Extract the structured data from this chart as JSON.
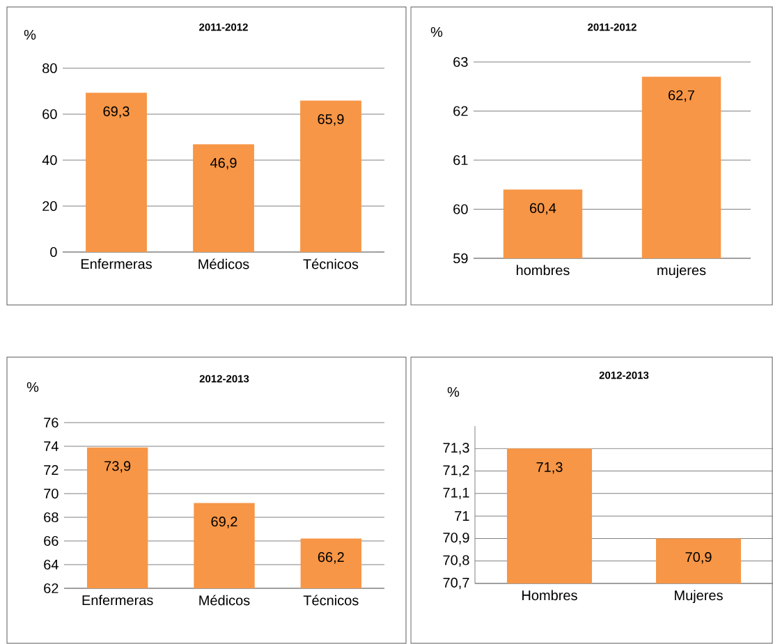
{
  "chart_data": [
    {
      "type": "bar",
      "title": "2011-2012",
      "ylabel": "%",
      "categories": [
        "Enfermeras",
        "Médicos",
        "Técnicos"
      ],
      "values": [
        69.3,
        46.9,
        65.9
      ],
      "value_labels": [
        "69,3",
        "46,9",
        "65,9"
      ],
      "color": "#f79646",
      "ylim": [
        0,
        80
      ],
      "yticks": [
        0,
        20,
        40,
        60,
        80
      ],
      "grid": "y"
    },
    {
      "type": "bar",
      "title": "2011-2012",
      "ylabel": "%",
      "categories": [
        "hombres",
        "mujeres"
      ],
      "values": [
        60.4,
        62.7
      ],
      "value_labels": [
        "60,4",
        "62,7"
      ],
      "color": "#f79646",
      "ylim": [
        59,
        63
      ],
      "yticks": [
        59,
        60,
        61,
        62,
        63
      ],
      "grid": "y"
    },
    {
      "type": "bar",
      "title": "2012-2013",
      "ylabel": "%",
      "categories": [
        "Enfermeras",
        "Médicos",
        "Técnicos"
      ],
      "values": [
        73.9,
        69.2,
        66.2
      ],
      "value_labels": [
        "73,9",
        "69,2",
        "66,2"
      ],
      "color": "#f79646",
      "ylim": [
        62,
        76
      ],
      "yticks": [
        62,
        64,
        66,
        68,
        70,
        72,
        74,
        76
      ],
      "grid": "y"
    },
    {
      "type": "bar",
      "title": "2012-2013",
      "ylabel": "%",
      "categories": [
        "Hombres",
        "Mujeres"
      ],
      "values": [
        71.3,
        70.9
      ],
      "value_labels": [
        "71,3",
        "70,9"
      ],
      "color": "#f79646",
      "ylim": [
        70.7,
        71.4
      ],
      "yticks": [
        {
          "value": 70.7,
          "label": "70,7"
        },
        {
          "value": 70.8,
          "label": "70,8"
        },
        {
          "value": 70.9,
          "label": "70,9"
        },
        {
          "value": 71,
          "label": "71"
        },
        {
          "value": 71.1,
          "label": "71,1"
        },
        {
          "value": 71.2,
          "label": "71,2"
        },
        {
          "value": 71.3,
          "label": "71,3"
        }
      ],
      "grid": "y"
    }
  ]
}
